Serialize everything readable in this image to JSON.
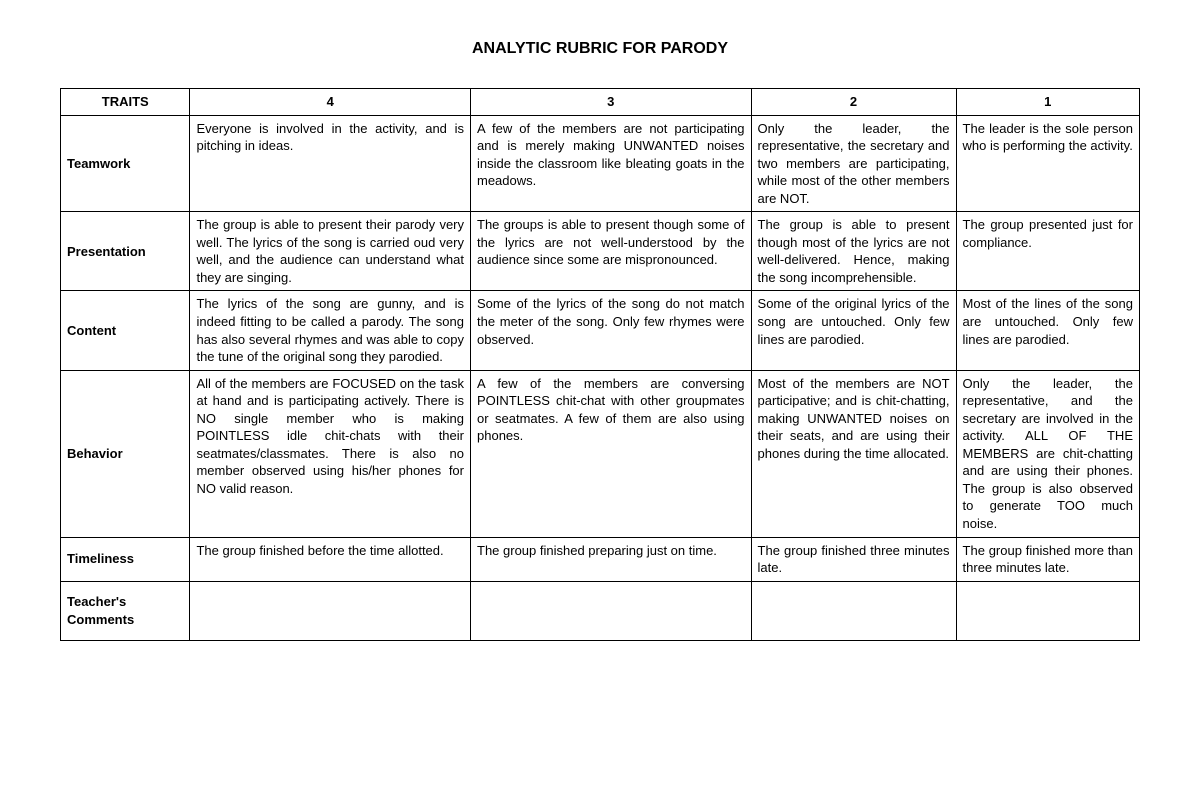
{
  "title": "ANALYTIC RUBRIC FOR PARODY",
  "headers": {
    "traits": "TRAITS",
    "s4": "4",
    "s3": "3",
    "s2": "2",
    "s1": "1"
  },
  "rows": {
    "teamwork": {
      "label": "Teamwork",
      "c4": "Everyone is involved in the activity, and is pitching in ideas.",
      "c3": "A few of the members are not participating and is merely making UNWANTED noises inside the classroom like bleating goats in the meadows.",
      "c2": "Only the leader, the representative, the secretary and two members are participating, while most of the other members are NOT.",
      "c1": "The leader is the sole person who is performing the activity."
    },
    "presentation": {
      "label": "Presentation",
      "c4": "The group is able to present their parody very well. The lyrics of the song is carried oud very well, and the audience can understand what they are singing.",
      "c3": "The groups is able to present though some of the lyrics are not well-understood by the audience since some are mispronounced.",
      "c2": "The group is able to present though most of the lyrics are not well-delivered. Hence, making the song incomprehensible.",
      "c1": "The group presented just for compliance."
    },
    "content": {
      "label": "Content",
      "c4": "The lyrics of the song are gunny, and is indeed fitting to be called a parody. The song has also several rhymes and was able to copy the tune of the original song they parodied.",
      "c3": "Some of the lyrics of the song do not match the meter of the song. Only few rhymes were observed.",
      "c2": "Some of the original lyrics of the song are untouched. Only few lines are parodied.",
      "c1": "Most of the lines of the song are untouched. Only few lines are parodied."
    },
    "behavior": {
      "label": "Behavior",
      "c4": "All of the members are FOCUSED on the task at hand and is participating actively. There is NO single member who is making POINTLESS idle chit-chats with their seatmates/classmates. There is also no member observed using his/her phones for NO valid reason.",
      "c3": "A few of the members are conversing POINTLESS chit-chat with other groupmates or seatmates. A few of them are also using phones.",
      "c2": "Most of the members are NOT participative; and is chit-chatting, making UNWANTED noises on their seats, and are using their phones during the time allocated.",
      "c1": "Only the leader, the representative, and the secretary are involved in the activity. ALL OF THE MEMBERS are chit-chatting and are using their phones. The group is also observed to generate TOO much noise."
    },
    "timeliness": {
      "label": "Timeliness",
      "c4": "The group finished before the time allotted.",
      "c3": "The group finished preparing just on time.",
      "c2": "The group finished three minutes late.",
      "c1": "The group finished more than three minutes late."
    },
    "comments": {
      "label": "Teacher's Comments",
      "c4": "",
      "c3": "",
      "c2": "",
      "c1": ""
    }
  }
}
